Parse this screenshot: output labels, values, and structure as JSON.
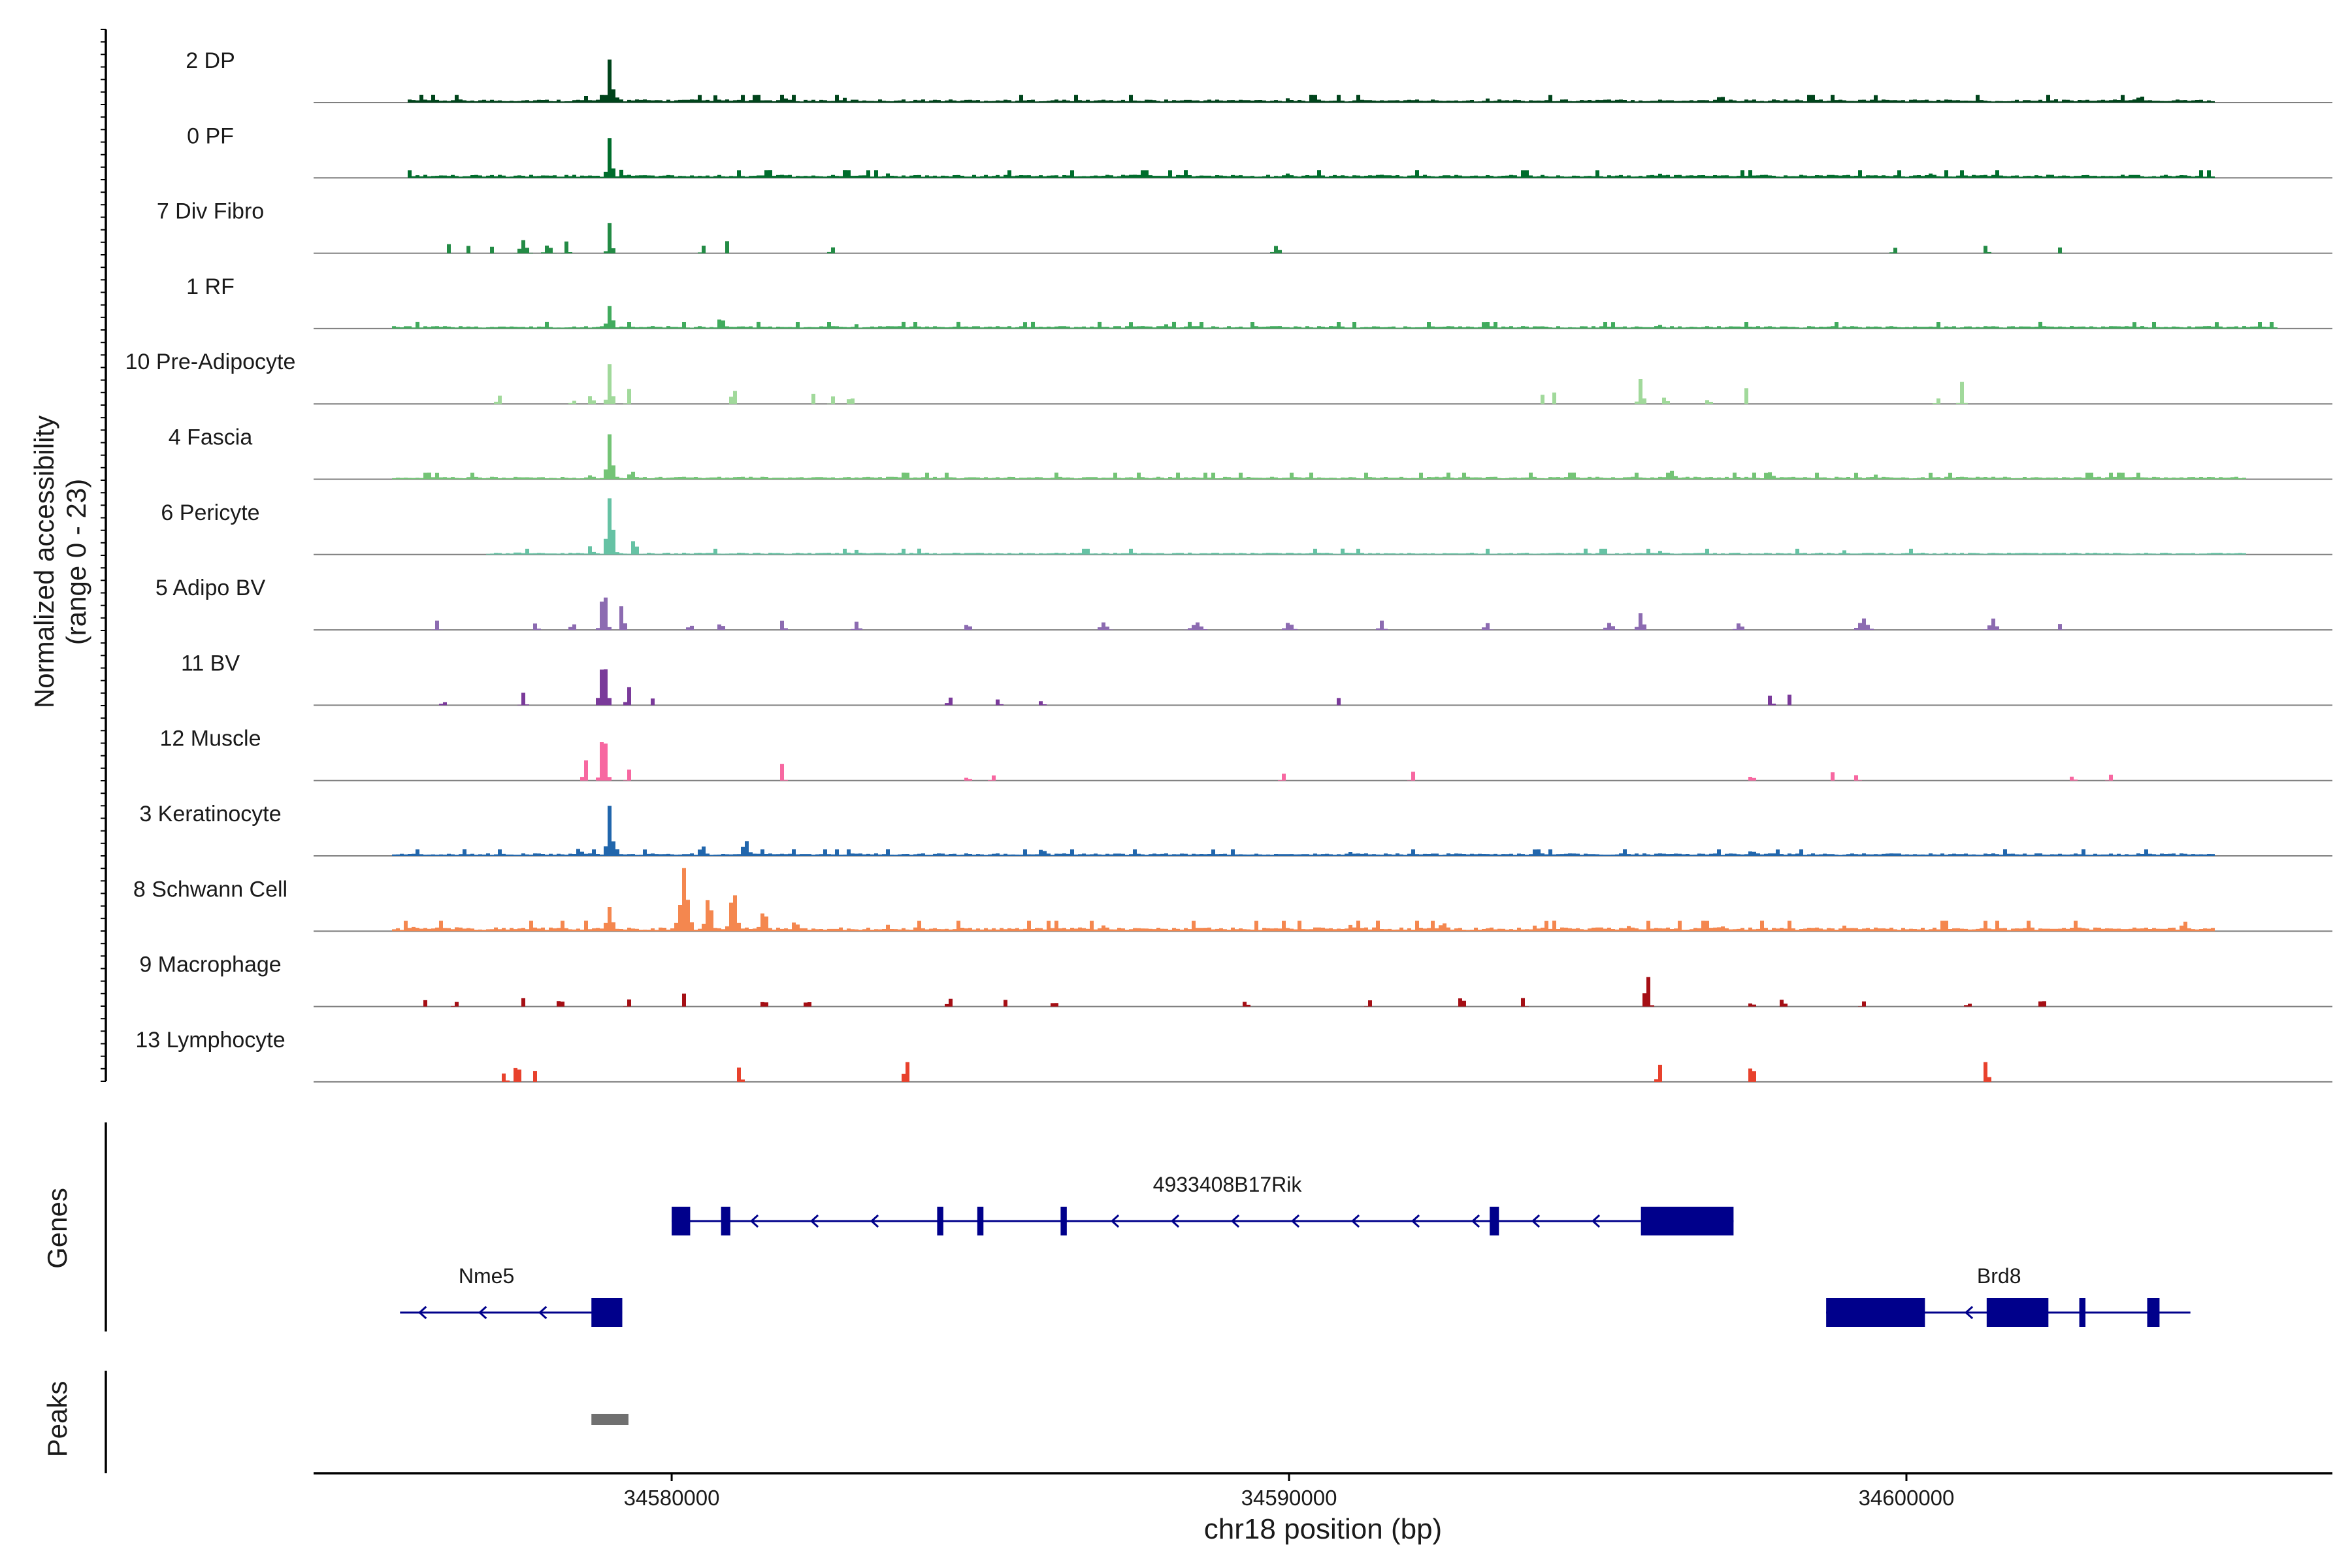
{
  "chart_data": {
    "type": "coverage-track",
    "region": {
      "chromosome": "chr18",
      "start": 34574200,
      "end": 34606900
    },
    "xlabel": "chr18 position (bp)",
    "ylabel_line1": "Normalized accessibility",
    "ylabel_line2": "(range 0 - 23)",
    "ylim": [
      0,
      23
    ],
    "x_ticks": [
      {
        "value": 34580000,
        "label": "34580000"
      },
      {
        "value": 34590000,
        "label": "34590000"
      },
      {
        "value": 34600000,
        "label": "34600000"
      }
    ],
    "tracks": [
      {
        "name": "2 DP",
        "color": "#00441b",
        "span": [
          34575700,
          34605000
        ],
        "bg": 1.0,
        "noise": 0.35,
        "peaks": [
          [
            34579000,
            120,
            15
          ],
          [
            34579150,
            60,
            6
          ],
          [
            34578600,
            80,
            3
          ],
          [
            34580700,
            100,
            3
          ],
          [
            34581800,
            150,
            3
          ],
          [
            34582800,
            80,
            2
          ],
          [
            34590000,
            100,
            2.5
          ],
          [
            34593200,
            100,
            2
          ],
          [
            34597000,
            200,
            2.5
          ],
          [
            34599500,
            150,
            2.5
          ],
          [
            34602400,
            100,
            2
          ],
          [
            34603800,
            200,
            2.5
          ]
        ]
      },
      {
        "name": "0 PF",
        "color": "#006d2c",
        "span": [
          34575700,
          34605000
        ],
        "bg": 1.0,
        "noise": 0.35,
        "peaks": [
          [
            34579000,
            110,
            14
          ],
          [
            34579200,
            60,
            5
          ],
          [
            34581600,
            120,
            3
          ],
          [
            34583500,
            100,
            1.5
          ],
          [
            34590000,
            120,
            2
          ],
          [
            34596000,
            200,
            1.5
          ],
          [
            34600400,
            150,
            1.5
          ]
        ]
      },
      {
        "name": "7 Div Fibro",
        "color": "#238b45",
        "span": [
          34576200,
          34601500
        ],
        "bg": 0,
        "noise": 0,
        "peaks": [
          [
            34576400,
            60,
            4
          ],
          [
            34576700,
            60,
            3
          ],
          [
            34577100,
            60,
            3
          ],
          [
            34577600,
            150,
            5
          ],
          [
            34578000,
            120,
            4
          ],
          [
            34578300,
            80,
            5
          ],
          [
            34579000,
            90,
            13
          ],
          [
            34580500,
            60,
            5
          ],
          [
            34580900,
            60,
            4
          ],
          [
            34582600,
            80,
            3
          ],
          [
            34589800,
            120,
            3
          ],
          [
            34599800,
            60,
            4
          ],
          [
            34601300,
            60,
            5
          ],
          [
            34602500,
            60,
            3
          ]
        ]
      },
      {
        "name": "1 RF",
        "color": "#41ab5d",
        "span": [
          34575500,
          34606000
        ],
        "bg": 0.8,
        "noise": 0.3,
        "peaks": [
          [
            34579000,
            130,
            8
          ],
          [
            34580800,
            120,
            5
          ],
          [
            34583000,
            100,
            1.5
          ],
          [
            34588000,
            150,
            1.5
          ],
          [
            34596000,
            200,
            1.5
          ]
        ]
      },
      {
        "name": "10 Pre-Adipocyte",
        "color": "#a1d99b",
        "span": [
          34577000,
          34601000
        ],
        "bg": 0,
        "noise": 0,
        "peaks": [
          [
            34577200,
            80,
            4
          ],
          [
            34578400,
            60,
            3
          ],
          [
            34578700,
            80,
            5
          ],
          [
            34579000,
            100,
            14
          ],
          [
            34579300,
            60,
            7
          ],
          [
            34581000,
            80,
            9
          ],
          [
            34582300,
            60,
            4
          ],
          [
            34582600,
            60,
            4
          ],
          [
            34582900,
            60,
            7
          ],
          [
            34594100,
            60,
            4
          ],
          [
            34594300,
            60,
            4
          ],
          [
            34595700,
            100,
            9
          ],
          [
            34596100,
            60,
            6
          ],
          [
            34596800,
            60,
            4
          ],
          [
            34597400,
            60,
            7
          ],
          [
            34600500,
            60,
            4
          ],
          [
            34600900,
            80,
            8
          ]
        ]
      },
      {
        "name": "4 Fascia",
        "color": "#74c476",
        "span": [
          34575500,
          34605500
        ],
        "bg": 0.8,
        "noise": 0.3,
        "peaks": [
          [
            34579000,
            120,
            18
          ],
          [
            34579350,
            80,
            6
          ],
          [
            34578700,
            60,
            4
          ],
          [
            34577500,
            100,
            1.5
          ],
          [
            34596200,
            150,
            3
          ],
          [
            34597800,
            150,
            2.5
          ],
          [
            34599500,
            150,
            1.5
          ]
        ]
      },
      {
        "name": "6 Pericyte",
        "color": "#66c2a4",
        "span": [
          34577000,
          34605500
        ],
        "bg": 0.6,
        "noise": 0.3,
        "peaks": [
          [
            34579000,
            150,
            20
          ],
          [
            34579400,
            80,
            9
          ],
          [
            34578700,
            60,
            7
          ],
          [
            34577500,
            100,
            1.5
          ],
          [
            34583000,
            150,
            1.5
          ],
          [
            34596000,
            120,
            1.5
          ],
          [
            34599000,
            120,
            1.5
          ]
        ]
      },
      {
        "name": "5 Adipo BV",
        "color": "#8c6bb1",
        "span": [
          34575700,
          34603500
        ],
        "bg": 0,
        "noise": 0,
        "peaks": [
          [
            34578900,
            120,
            18
          ],
          [
            34579200,
            80,
            13
          ],
          [
            34578400,
            80,
            4
          ],
          [
            34576200,
            80,
            3
          ],
          [
            34577800,
            80,
            3
          ],
          [
            34580300,
            80,
            3
          ],
          [
            34580800,
            80,
            4
          ],
          [
            34581800,
            80,
            4
          ],
          [
            34583000,
            100,
            3
          ],
          [
            34584800,
            100,
            3
          ],
          [
            34587000,
            150,
            3
          ],
          [
            34588500,
            200,
            3
          ],
          [
            34590000,
            150,
            3
          ],
          [
            34591500,
            100,
            3
          ],
          [
            34593200,
            100,
            3
          ],
          [
            34595200,
            150,
            3
          ],
          [
            34595700,
            120,
            6
          ],
          [
            34597300,
            120,
            3
          ],
          [
            34599300,
            200,
            4
          ],
          [
            34601400,
            150,
            4
          ],
          [
            34602500,
            60,
            3
          ]
        ]
      },
      {
        "name": "11 BV",
        "color": "#7a3a9a",
        "span": [
          34576000,
          34602000
        ],
        "bg": 0,
        "noise": 0,
        "peaks": [
          [
            34576300,
            60,
            3
          ],
          [
            34577600,
            80,
            5
          ],
          [
            34578900,
            150,
            18
          ],
          [
            34579300,
            80,
            8
          ],
          [
            34579700,
            60,
            3
          ],
          [
            34584500,
            80,
            4
          ],
          [
            34585300,
            60,
            4
          ],
          [
            34586000,
            60,
            3
          ],
          [
            34590800,
            60,
            3
          ],
          [
            34597800,
            80,
            4
          ],
          [
            34598100,
            60,
            4
          ]
        ]
      },
      {
        "name": "12 Muscle",
        "color": "#f768a1",
        "span": [
          34578000,
          34603500
        ],
        "bg": 0,
        "noise": 0,
        "peaks": [
          [
            34578600,
            80,
            10
          ],
          [
            34578900,
            120,
            25
          ],
          [
            34579300,
            60,
            6
          ],
          [
            34581800,
            60,
            10
          ],
          [
            34584800,
            60,
            3
          ],
          [
            34585200,
            60,
            3
          ],
          [
            34589900,
            60,
            4
          ],
          [
            34592000,
            60,
            4
          ],
          [
            34597500,
            60,
            5
          ],
          [
            34598800,
            60,
            3
          ],
          [
            34599200,
            60,
            3
          ],
          [
            34602700,
            60,
            3
          ],
          [
            34603300,
            60,
            3
          ]
        ]
      },
      {
        "name": "3 Keratinocyte",
        "color": "#2166ac",
        "span": [
          34575500,
          34605000
        ],
        "bg": 0.8,
        "noise": 0.3,
        "peaks": [
          [
            34579000,
            120,
            17
          ],
          [
            34578500,
            150,
            3
          ],
          [
            34580500,
            150,
            4
          ],
          [
            34581200,
            150,
            6
          ],
          [
            34586000,
            150,
            3
          ],
          [
            34591000,
            150,
            1.5
          ],
          [
            34597500,
            120,
            2.5
          ]
        ]
      },
      {
        "name": "8 Schwann Cell",
        "color": "#f4874f",
        "span": [
          34575500,
          34605000
        ],
        "bg": 1.2,
        "noise": 0.5,
        "peaks": [
          [
            34579000,
            150,
            9
          ],
          [
            34580200,
            200,
            21
          ],
          [
            34580600,
            150,
            13
          ],
          [
            34581000,
            150,
            16
          ],
          [
            34581500,
            150,
            9
          ],
          [
            34582000,
            150,
            4
          ],
          [
            34575800,
            150,
            2
          ],
          [
            34576500,
            100,
            2
          ],
          [
            34583500,
            150,
            2
          ],
          [
            34587000,
            200,
            2
          ],
          [
            34591000,
            200,
            2
          ],
          [
            34592500,
            200,
            3
          ],
          [
            34594000,
            100,
            3
          ],
          [
            34595500,
            200,
            2
          ],
          [
            34597000,
            200,
            2
          ],
          [
            34599000,
            200,
            2
          ],
          [
            34604500,
            150,
            4
          ]
        ]
      },
      {
        "name": "9 Macrophage",
        "color": "#a50f15",
        "span": [
          34576000,
          34603000
        ],
        "bg": 0,
        "noise": 0,
        "peaks": [
          [
            34576000,
            60,
            3
          ],
          [
            34576500,
            60,
            3
          ],
          [
            34577600,
            60,
            3
          ],
          [
            34578200,
            100,
            4
          ],
          [
            34579300,
            60,
            4
          ],
          [
            34580200,
            60,
            4
          ],
          [
            34581500,
            80,
            4
          ],
          [
            34582200,
            80,
            4
          ],
          [
            34584500,
            80,
            4
          ],
          [
            34585400,
            60,
            3
          ],
          [
            34586200,
            80,
            3
          ],
          [
            34589300,
            80,
            3
          ],
          [
            34591300,
            60,
            3
          ],
          [
            34592800,
            100,
            5
          ],
          [
            34593800,
            60,
            4
          ],
          [
            34595800,
            100,
            15
          ],
          [
            34597500,
            60,
            4
          ],
          [
            34598000,
            80,
            4
          ],
          [
            34599300,
            60,
            3
          ],
          [
            34601000,
            60,
            3
          ],
          [
            34602200,
            100,
            4
          ]
        ]
      },
      {
        "name": "13 Lymphocyte",
        "color": "#e8412c",
        "span": [
          34577000,
          34602000
        ],
        "bg": 0,
        "noise": 0,
        "peaks": [
          [
            34577300,
            60,
            6
          ],
          [
            34577500,
            70,
            14
          ],
          [
            34577800,
            50,
            7
          ],
          [
            34581100,
            80,
            6
          ],
          [
            34583800,
            80,
            13
          ],
          [
            34596000,
            80,
            8
          ],
          [
            34597500,
            70,
            13
          ],
          [
            34601300,
            70,
            13
          ]
        ]
      }
    ],
    "genes": [
      {
        "name": "4933408B17Rik",
        "strand": "-",
        "row": 1,
        "start": 34580000,
        "end": 34597200,
        "exons": [
          [
            34580000,
            34580300
          ],
          [
            34580800,
            34580950
          ],
          [
            34584300,
            34584400
          ],
          [
            34584950,
            34585050
          ],
          [
            34586300,
            34586400
          ],
          [
            34593250,
            34593400
          ],
          [
            34595700,
            34597200
          ]
        ]
      },
      {
        "name": "Nme5",
        "strand": "-",
        "row": 2,
        "start": 34575600,
        "end": 34579200,
        "exons": [
          [
            34578700,
            34579200
          ]
        ]
      },
      {
        "name": "Brd8",
        "strand": "-",
        "row": 2,
        "start": 34598700,
        "end": 34604600,
        "exons": [
          [
            34598700,
            34600300
          ],
          [
            34601300,
            34602300
          ],
          [
            34602800,
            34602900
          ],
          [
            34603900,
            34604100
          ]
        ]
      }
    ],
    "peaks": [
      {
        "start": 34578700,
        "end": 34579300
      }
    ],
    "panel_labels": {
      "genes": "Genes",
      "peaks": "Peaks"
    }
  }
}
